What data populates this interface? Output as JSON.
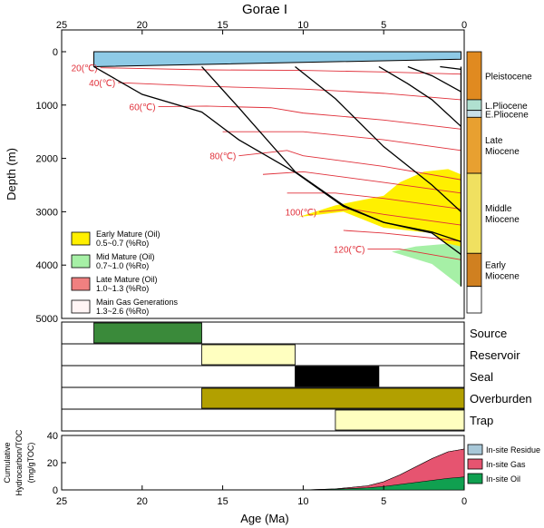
{
  "title": "Gorae I",
  "colors": {
    "sea": "#8ecae6",
    "early_mature": "#fff000",
    "mid_mature": "#a6f0a6",
    "late_mature": "#f08080",
    "main_gas": "#fff4f4",
    "isotherm": "#e0303a",
    "source": "#3a8a3a",
    "reservoir": "#ffffc0",
    "seal": "#000000",
    "overburden": "#b2a000",
    "trap": "#ffffc0",
    "insite_residue": "#a8c8d8",
    "insite_gas": "#e65470",
    "insite_oil": "#10a050"
  },
  "chart_data": [
    {
      "type": "area",
      "name": "burial-history",
      "x_axis": {
        "ticks": [
          "25",
          "20",
          "15",
          "10",
          "5",
          "0"
        ],
        "tick_values": [
          25,
          20,
          15,
          10,
          5,
          0
        ],
        "reversed": true
      },
      "y_axis": {
        "label": "Depth  (m)",
        "ticks": [
          "0",
          "1000",
          "2000",
          "3000",
          "4000",
          "5000"
        ],
        "tick_values": [
          0,
          1000,
          2000,
          3000,
          4000,
          5000
        ],
        "range": [
          0,
          5000
        ]
      },
      "surface_band": {
        "age": [
          23,
          0.2
        ],
        "depth_old": [
          0,
          280
        ],
        "depth_young": [
          0,
          140
        ]
      },
      "horizons": [
        {
          "age": [
            23,
            20,
            16.3,
            14,
            10.5,
            7.5,
            5,
            2,
            0.2
          ],
          "depth": [
            280,
            800,
            1130,
            1650,
            2260,
            2900,
            3200,
            3380,
            3560
          ]
        },
        {
          "age": [
            16.3,
            14,
            10.5,
            7.5,
            5,
            2,
            0.2
          ],
          "depth": [
            280,
            1050,
            2250,
            2880,
            3200,
            3400,
            3800
          ]
        },
        {
          "age": [
            10.5,
            8,
            5,
            2,
            0.2
          ],
          "depth": [
            280,
            880,
            1780,
            2500,
            3000
          ]
        },
        {
          "age": [
            5.3,
            3.5,
            2,
            0.2
          ],
          "depth": [
            280,
            600,
            900,
            1400
          ]
        },
        {
          "age": [
            3.5,
            2,
            0.2
          ],
          "depth": [
            280,
            450,
            750
          ]
        },
        {
          "age": [
            1.5,
            0.2
          ],
          "depth": [
            280,
            330
          ]
        },
        {
          "age": [
            0.2,
            0.2
          ],
          "depth": [
            280,
            4400
          ]
        }
      ],
      "isotherms": [
        {
          "label": "20(℃)",
          "age": [
            22.6,
            16,
            10,
            5,
            0.2
          ],
          "depth": [
            300,
            340,
            350,
            380,
            420
          ]
        },
        {
          "label": "40(℃)",
          "age": [
            21.5,
            16,
            10,
            5,
            0.2
          ],
          "depth": [
            580,
            650,
            700,
            780,
            900
          ]
        },
        {
          "label": "60(℃)",
          "age": [
            19,
            16,
            12,
            10,
            5,
            0.2
          ],
          "depth": [
            1030,
            1020,
            1050,
            1150,
            1280,
            1450
          ]
        },
        {
          "label": "",
          "age": [
            15,
            10,
            5,
            0.2
          ],
          "depth": [
            1500,
            1500,
            1650,
            1850
          ]
        },
        {
          "label": "80(℃)",
          "age": [
            14,
            11,
            10,
            5,
            0.2
          ],
          "depth": [
            1950,
            1850,
            1950,
            2150,
            2400
          ]
        },
        {
          "label": "",
          "age": [
            12.5,
            10,
            5,
            0.2
          ],
          "depth": [
            2300,
            2250,
            2450,
            2650
          ]
        },
        {
          "label": "",
          "age": [
            11,
            8,
            5,
            0.2
          ],
          "depth": [
            2650,
            2650,
            2750,
            2950
          ]
        },
        {
          "label": "100(℃)",
          "age": [
            9,
            7,
            5,
            0.2
          ],
          "depth": [
            3000,
            2950,
            3050,
            3250
          ]
        },
        {
          "label": "",
          "age": [
            7.5,
            5,
            0.2
          ],
          "depth": [
            3350,
            3400,
            3550
          ]
        },
        {
          "label": "120(℃)",
          "age": [
            6,
            4,
            0.2
          ],
          "depth": [
            3700,
            3700,
            3900
          ]
        }
      ],
      "maturity_zones": [
        {
          "zone": "early_mature",
          "polygon_age": [
            10.3,
            8,
            5,
            4,
            2.5,
            1,
            0.2,
            0.2,
            2,
            5,
            7.5,
            10.3
          ],
          "polygon_depth": [
            3100,
            2880,
            2700,
            2450,
            2250,
            2200,
            2300,
            3800,
            3400,
            3300,
            3000,
            3100
          ]
        },
        {
          "zone": "mid_mature",
          "polygon_age": [
            4.5,
            3,
            1,
            0.2,
            0.2,
            2,
            4.5
          ],
          "polygon_depth": [
            3750,
            3650,
            3600,
            3650,
            4400,
            3980,
            3750
          ]
        }
      ],
      "legend": [
        {
          "key": "early_mature",
          "label": "Early Mature (Oil)",
          "sub": "0.5~0.7  (%Ro)"
        },
        {
          "key": "mid_mature",
          "label": "Mid Mature (Oil)",
          "sub": "0.7~1.0  (%Ro)"
        },
        {
          "key": "late_mature",
          "label": "Late Mature (Oil)",
          "sub": "1.0~1.3  (%Ro)"
        },
        {
          "key": "main_gas",
          "label": "Main Gas Generations",
          "sub": "1.3~2.6  (%Ro)"
        }
      ],
      "stratigraphy": [
        {
          "label": "Pleistocene",
          "depth_top": 0,
          "depth_base": 900
        },
        {
          "label": "L.Pliocene",
          "depth_top": 900,
          "depth_base": 1100
        },
        {
          "label": "E.Pliocene",
          "depth_top": 1100,
          "depth_base": 1230
        },
        {
          "label": "Late\nMiocene",
          "depth_top": 1230,
          "depth_base": 2280
        },
        {
          "label": "Middle\nMiocene",
          "depth_top": 2280,
          "depth_base": 3780
        },
        {
          "label": "Early\nMiocene",
          "depth_top": 3780,
          "depth_base": 4400
        }
      ]
    },
    {
      "type": "table",
      "name": "petroleum-system-events",
      "rows": [
        {
          "label": "Source",
          "color_key": "source",
          "age_start": 23,
          "age_end": 16.3
        },
        {
          "label": "Reservoir",
          "color_key": "reservoir",
          "age_start": 16.3,
          "age_end": 10.5
        },
        {
          "label": "Seal",
          "color_key": "seal",
          "age_start": 10.5,
          "age_end": 5.3
        },
        {
          "label": "Overburden",
          "color_key": "overburden",
          "age_start": 16.3,
          "age_end": 0
        },
        {
          "label": "Trap",
          "color_key": "trap",
          "age_start": 8,
          "age_end": 0
        }
      ]
    },
    {
      "type": "area",
      "name": "cumulative-hydrocarbon",
      "y_axis": {
        "label": "Cumulative\nHydrocarbon/TOC\n(mg/gTOC)",
        "ticks": [
          "0",
          "20",
          "40"
        ],
        "tick_values": [
          0,
          20,
          40
        ],
        "range": [
          0,
          40
        ]
      },
      "x_axis": {
        "label": "Age  (Ma)",
        "ticks": [
          "25",
          "20",
          "15",
          "10",
          "5",
          "0"
        ],
        "tick_values": [
          25,
          20,
          15,
          10,
          5,
          0
        ],
        "reversed": true
      },
      "age": [
        10,
        8,
        6,
        5,
        4,
        3,
        2,
        1,
        0
      ],
      "series": [
        {
          "name": "In-site Oil",
          "color_key": "insite_oil",
          "values": [
            0,
            0.5,
            1.5,
            2.5,
            4,
            5.5,
            7,
            8.5,
            9.5
          ]
        },
        {
          "name": "In-site Gas",
          "color_key": "insite_gas",
          "values": [
            0,
            0.7,
            3,
            6,
            11,
            17,
            23,
            28,
            30
          ]
        },
        {
          "name": "In-site Residue",
          "color_key": "insite_residue",
          "values": [
            0,
            0.7,
            3,
            6,
            11,
            17,
            23,
            28,
            30
          ]
        }
      ]
    }
  ]
}
